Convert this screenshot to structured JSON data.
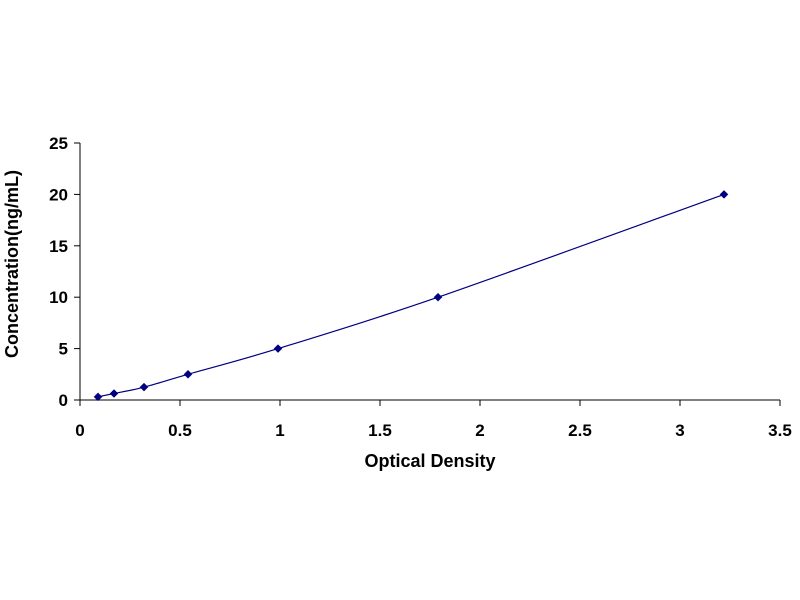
{
  "chart_data": {
    "type": "line",
    "xlabel": "Optical Density",
    "ylabel": "Concentration(ng/mL)",
    "xlim": [
      0,
      3.5
    ],
    "ylim": [
      0,
      25
    ],
    "x_ticks": [
      0,
      0.5,
      1,
      1.5,
      2,
      2.5,
      3,
      3.5
    ],
    "x_tick_labels": [
      "0",
      "0.5",
      "1",
      "1.5",
      "2",
      "2.5",
      "3",
      "3.5"
    ],
    "y_ticks": [
      0,
      5,
      10,
      15,
      20,
      25
    ],
    "y_tick_labels": [
      "0",
      "5",
      "10",
      "15",
      "20",
      "25"
    ],
    "grid": false,
    "legend": "none",
    "series": [
      {
        "color": "#000080",
        "marker": "diamond",
        "points": [
          {
            "x": 0.09,
            "y": 0.31
          },
          {
            "x": 0.17,
            "y": 0.63
          },
          {
            "x": 0.32,
            "y": 1.25
          },
          {
            "x": 0.54,
            "y": 2.5
          },
          {
            "x": 0.99,
            "y": 5
          },
          {
            "x": 1.79,
            "y": 10
          },
          {
            "x": 3.22,
            "y": 20
          }
        ]
      }
    ]
  }
}
